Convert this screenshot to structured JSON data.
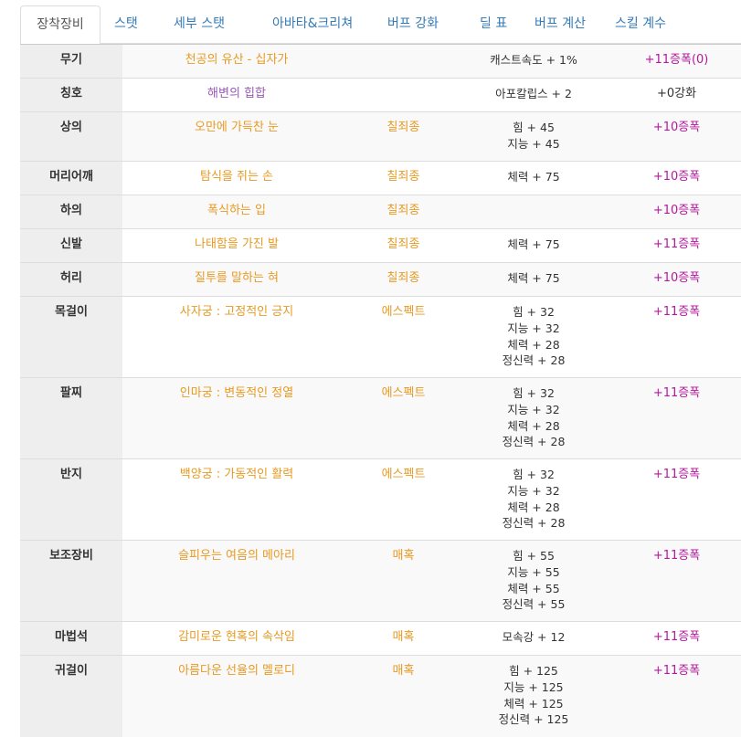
{
  "tabs": [
    {
      "label": "장착장비",
      "active": true
    },
    {
      "label": "스탯",
      "active": false
    },
    {
      "label": "세부 스탯",
      "active": false
    },
    {
      "label": "아바타&크리쳐",
      "active": false
    },
    {
      "label": "버프 강화",
      "active": false
    },
    {
      "label": "딜 표",
      "active": false
    },
    {
      "label": "버프 계산",
      "active": false
    },
    {
      "label": "스킬 계수",
      "active": false
    }
  ],
  "colors": {
    "item_name": "#e89a22",
    "title_name": "#9b59b6",
    "enhance": "#b5179e",
    "link": "#337ab7"
  },
  "rows": [
    {
      "slot": "무기",
      "name": "천공의 유산 - 십자가",
      "set": "",
      "options": [
        "캐스트속도 + 1%"
      ],
      "enhance": "+11증폭(0)"
    },
    {
      "slot": "칭호",
      "name": "해변의 힙합",
      "set": "",
      "options": [
        "아포칼립스 + 2"
      ],
      "enhance": "+0강화"
    },
    {
      "slot": "상의",
      "name": "오만에 가득찬 눈",
      "set": "칠죄종",
      "options": [
        "힘 + 45",
        "지능 + 45"
      ],
      "enhance": "+10증폭"
    },
    {
      "slot": "머리어깨",
      "name": "탐식을 쥐는 손",
      "set": "칠죄종",
      "options": [
        "체력 + 75"
      ],
      "enhance": "+10증폭"
    },
    {
      "slot": "하의",
      "name": "폭식하는 입",
      "set": "칠죄종",
      "options": [],
      "enhance": "+10증폭"
    },
    {
      "slot": "신발",
      "name": "나태함을 가진 발",
      "set": "칠죄종",
      "options": [
        "체력 + 75"
      ],
      "enhance": "+11증폭"
    },
    {
      "slot": "허리",
      "name": "질투를 말하는 혀",
      "set": "칠죄종",
      "options": [
        "체력 + 75"
      ],
      "enhance": "+10증폭"
    },
    {
      "slot": "목걸이",
      "name": "사자궁 : 고정적인 긍지",
      "set": "에스펙트",
      "options": [
        "힘 + 32",
        "지능 + 32",
        "체력 + 28",
        "정신력 + 28"
      ],
      "enhance": "+11증폭"
    },
    {
      "slot": "팔찌",
      "name": "인마궁 : 변동적인 정열",
      "set": "에스펙트",
      "options": [
        "힘 + 32",
        "지능 + 32",
        "체력 + 28",
        "정신력 + 28"
      ],
      "enhance": "+11증폭"
    },
    {
      "slot": "반지",
      "name": "백양궁 : 가동적인 활력",
      "set": "에스펙트",
      "options": [
        "힘 + 32",
        "지능 + 32",
        "체력 + 28",
        "정신력 + 28"
      ],
      "enhance": "+11증폭"
    },
    {
      "slot": "보조장비",
      "name": "슬피우는 여음의 메아리",
      "set": "매혹",
      "options": [
        "힘 + 55",
        "지능 + 55",
        "체력 + 55",
        "정신력 + 55"
      ],
      "enhance": "+11증폭"
    },
    {
      "slot": "마법석",
      "name": "감미로운 현혹의 속삭임",
      "set": "매혹",
      "options": [
        "모속강 + 12"
      ],
      "enhance": "+11증폭"
    },
    {
      "slot": "귀걸이",
      "name": "아름다운 선율의 멜로디",
      "set": "매혹",
      "options": [
        "힘 + 125",
        "지능 + 125",
        "체력 + 125",
        "정신력 + 125"
      ],
      "enhance": "+11증폭"
    }
  ]
}
